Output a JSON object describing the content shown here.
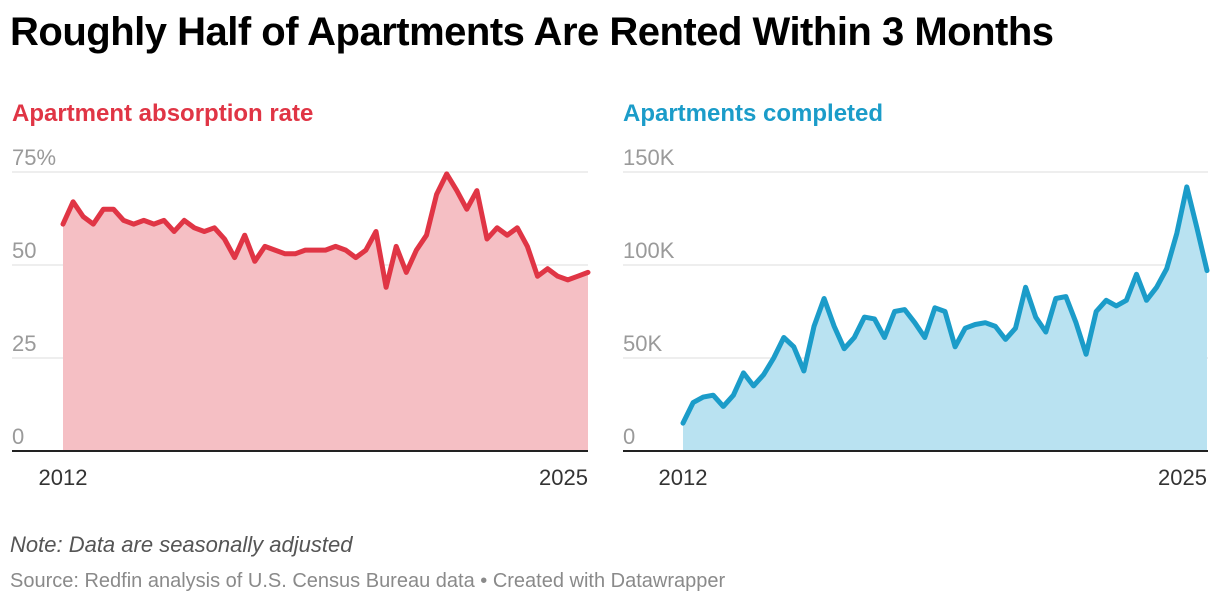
{
  "title": "Roughly Half of Apartments Are Rented Within 3 Months",
  "note": "Note: Data are seasonally adjusted",
  "source": "Source: Redfin analysis of U.S. Census Bureau data • Created with Datawrapper",
  "chart_data": [
    {
      "type": "area",
      "title": "Apartment absorption rate",
      "color": "#e03545",
      "fill_color": "#f5bfc4",
      "ylim": [
        0,
        75
      ],
      "yticks": [
        0,
        25,
        50,
        75
      ],
      "ytick_labels": [
        "0",
        "25",
        "50",
        "75%"
      ],
      "xlim": [
        2012,
        2025
      ],
      "xtick_labels": [
        "2012",
        "2025"
      ],
      "grid": true,
      "series": [
        {
          "x": [
            2012.0,
            2012.25,
            2012.5,
            2012.75,
            2013.0,
            2013.25,
            2013.5,
            2013.75,
            2014.0,
            2014.25,
            2014.5,
            2014.75,
            2015.0,
            2015.25,
            2015.5,
            2015.75,
            2016.0,
            2016.25,
            2016.5,
            2016.75,
            2017.0,
            2017.25,
            2017.5,
            2017.75,
            2018.0,
            2018.25,
            2018.5,
            2018.75,
            2019.0,
            2019.25,
            2019.5,
            2019.75,
            2020.0,
            2020.25,
            2020.5,
            2020.75,
            2021.0,
            2021.25,
            2021.5,
            2021.75,
            2022.0,
            2022.25,
            2022.5,
            2022.75,
            2023.0,
            2023.25,
            2023.5,
            2023.75,
            2024.0,
            2024.25,
            2024.5,
            2024.75,
            2025.0
          ],
          "values": [
            61,
            67,
            63,
            61,
            65,
            65,
            62,
            61,
            62,
            61,
            62,
            59,
            62,
            60,
            59,
            60,
            57,
            52,
            58,
            51,
            55,
            54,
            53,
            53,
            54,
            54,
            54,
            55,
            54,
            52,
            54,
            59,
            44,
            55,
            48,
            54,
            58,
            69,
            74.5,
            70,
            65,
            70,
            57,
            60,
            58,
            60,
            55,
            47,
            49,
            47,
            46,
            47,
            48
          ]
        }
      ]
    },
    {
      "type": "area",
      "title": "Apartments completed",
      "color": "#1b9cc9",
      "fill_color": "#b9e2f1",
      "ylim": [
        0,
        150000
      ],
      "yticks": [
        0,
        50000,
        100000,
        150000
      ],
      "ytick_labels": [
        "0",
        "50K",
        "100K",
        "150K"
      ],
      "xlim": [
        2012,
        2025
      ],
      "xtick_labels": [
        "2012",
        "2025"
      ],
      "grid": true,
      "series": [
        {
          "x": [
            2012.0,
            2012.25,
            2012.5,
            2012.75,
            2013.0,
            2013.25,
            2013.5,
            2013.75,
            2014.0,
            2014.25,
            2014.5,
            2014.75,
            2015.0,
            2015.25,
            2015.5,
            2015.75,
            2016.0,
            2016.25,
            2016.5,
            2016.75,
            2017.0,
            2017.25,
            2017.5,
            2017.75,
            2018.0,
            2018.25,
            2018.5,
            2018.75,
            2019.0,
            2019.25,
            2019.5,
            2019.75,
            2020.0,
            2020.25,
            2020.5,
            2020.75,
            2021.0,
            2021.25,
            2021.5,
            2021.75,
            2022.0,
            2022.25,
            2022.5,
            2022.75,
            2023.0,
            2023.25,
            2023.5,
            2023.75,
            2024.0,
            2024.25,
            2024.5,
            2024.75,
            2025.0
          ],
          "values": [
            15000,
            26000,
            29000,
            30000,
            24000,
            30000,
            42000,
            35000,
            41000,
            50000,
            61000,
            56000,
            43000,
            67000,
            82000,
            67000,
            55000,
            61000,
            72000,
            71000,
            61000,
            75000,
            76000,
            69000,
            61000,
            77000,
            75000,
            56000,
            66000,
            68000,
            69000,
            67000,
            60000,
            66000,
            88000,
            72000,
            64000,
            82000,
            83000,
            69000,
            52000,
            75000,
            81000,
            78000,
            81000,
            95000,
            81000,
            88000,
            98000,
            117000,
            142000,
            120000,
            97000
          ]
        }
      ]
    }
  ]
}
